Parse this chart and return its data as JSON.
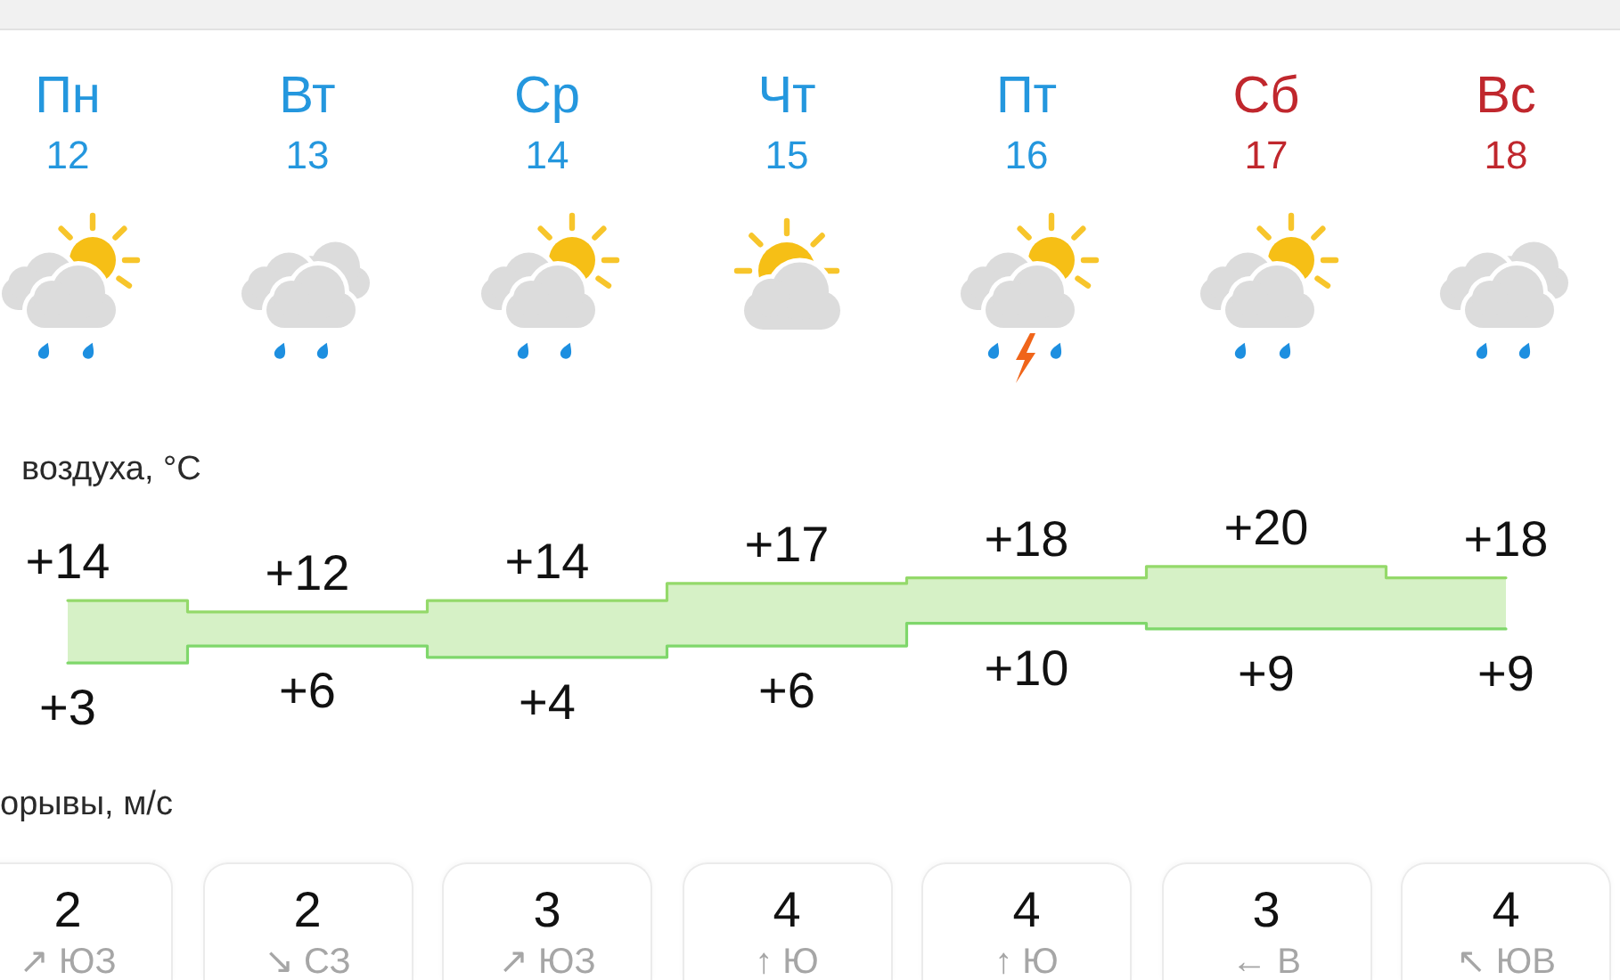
{
  "chart_data": [
    {
      "type": "step",
      "title": "воздуха, °C",
      "categories": [
        "Пн\n12",
        "Вт\n13",
        "Ср\n14",
        "Чт\n15",
        "Пт\n16",
        "Сб\n17",
        "Вс\n18"
      ],
      "series": [
        {
          "values": [
            14,
            12,
            14,
            17,
            18,
            20,
            18
          ],
          "color": "#94d96a",
          "value_labels": [
            "+14",
            "+12",
            "+14",
            "+17",
            "+18",
            "+20",
            "+18"
          ],
          "lower": [
            3,
            6,
            4,
            6,
            10,
            9,
            9
          ],
          "upper": [
            14,
            12,
            14,
            17,
            18,
            20,
            18
          ]
        },
        {
          "values": [
            3,
            6,
            4,
            6,
            10,
            9,
            9
          ],
          "color": "#7fd76b",
          "value_labels": [
            "+3",
            "+6",
            "+4",
            "+6",
            "+10",
            "+9",
            "+9"
          ]
        }
      ]
    },
    {
      "type": "other",
      "title": "орывы, м/с",
      "categories": [
        null,
        null,
        null,
        null,
        null,
        null,
        null
      ],
      "values": [
        2,
        2,
        3,
        4,
        4,
        3,
        4
      ],
      "data_labels": true,
      "annotations": [
        "↗ ЮЗ",
        "↘ СЗ",
        "↗ ЮЗ",
        "↑ Ю",
        "↑ Ю",
        "← В",
        "↖ ЮВ"
      ]
    }
  ]
}
